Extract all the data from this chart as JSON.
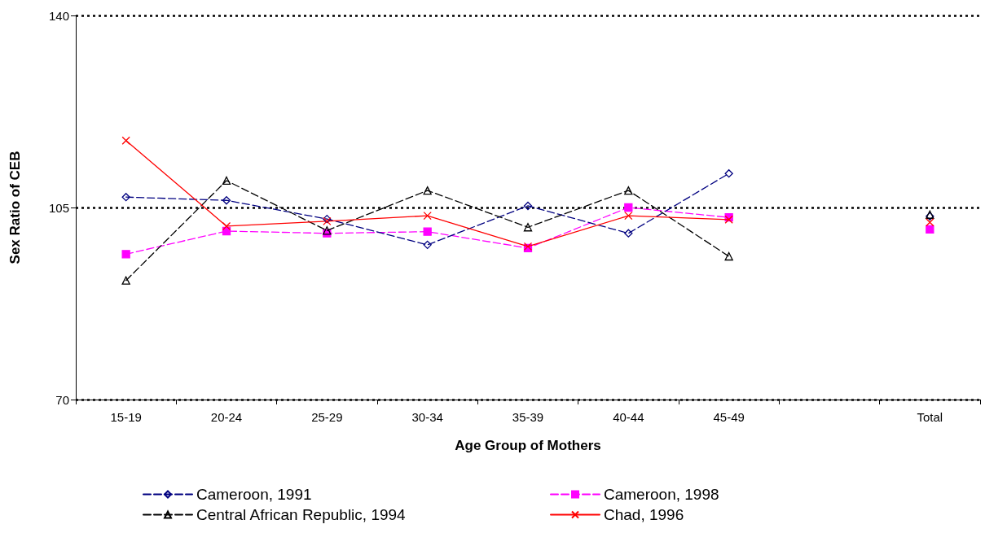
{
  "chart_data": {
    "type": "line",
    "xlabel": "Age Group of Mothers",
    "ylabel": "Sex Ratio of CEB",
    "categories": [
      "15-19",
      "20-24",
      "25-29",
      "30-34",
      "35-39",
      "40-44",
      "45-49",
      null,
      "Total"
    ],
    "ylim": [
      70,
      140
    ],
    "yticks": [
      70,
      105,
      140
    ],
    "grid": "y",
    "legend": "bottom",
    "series": [
      {
        "name": "Cameroon, 1991",
        "color": "#000080",
        "marker": "diamond",
        "line_style": "dashed",
        "values": [
          106.9,
          106.3,
          102.9,
          98.2,
          105.3,
          100.3,
          111.2,
          null,
          103.4
        ]
      },
      {
        "name": "Cameroon, 1998",
        "color": "#ff00ff",
        "marker": "square",
        "line_style": "dashed",
        "values": [
          96.5,
          100.7,
          100.3,
          100.6,
          97.6,
          105.0,
          103.2,
          null,
          101.0
        ]
      },
      {
        "name": "Central African Republic, 1994",
        "color": "#000000",
        "marker": "triangle",
        "line_style": "dashed",
        "values": [
          91.7,
          109.9,
          100.8,
          108.1,
          101.4,
          108.1,
          96.1,
          null,
          103.7
        ]
      },
      {
        "name": "Chad, 1996",
        "color": "#ff0000",
        "marker": "cross",
        "line_style": "solid",
        "values": [
          117.2,
          101.6,
          102.5,
          103.5,
          97.9,
          103.5,
          102.8,
          null,
          102.3
        ]
      }
    ]
  }
}
